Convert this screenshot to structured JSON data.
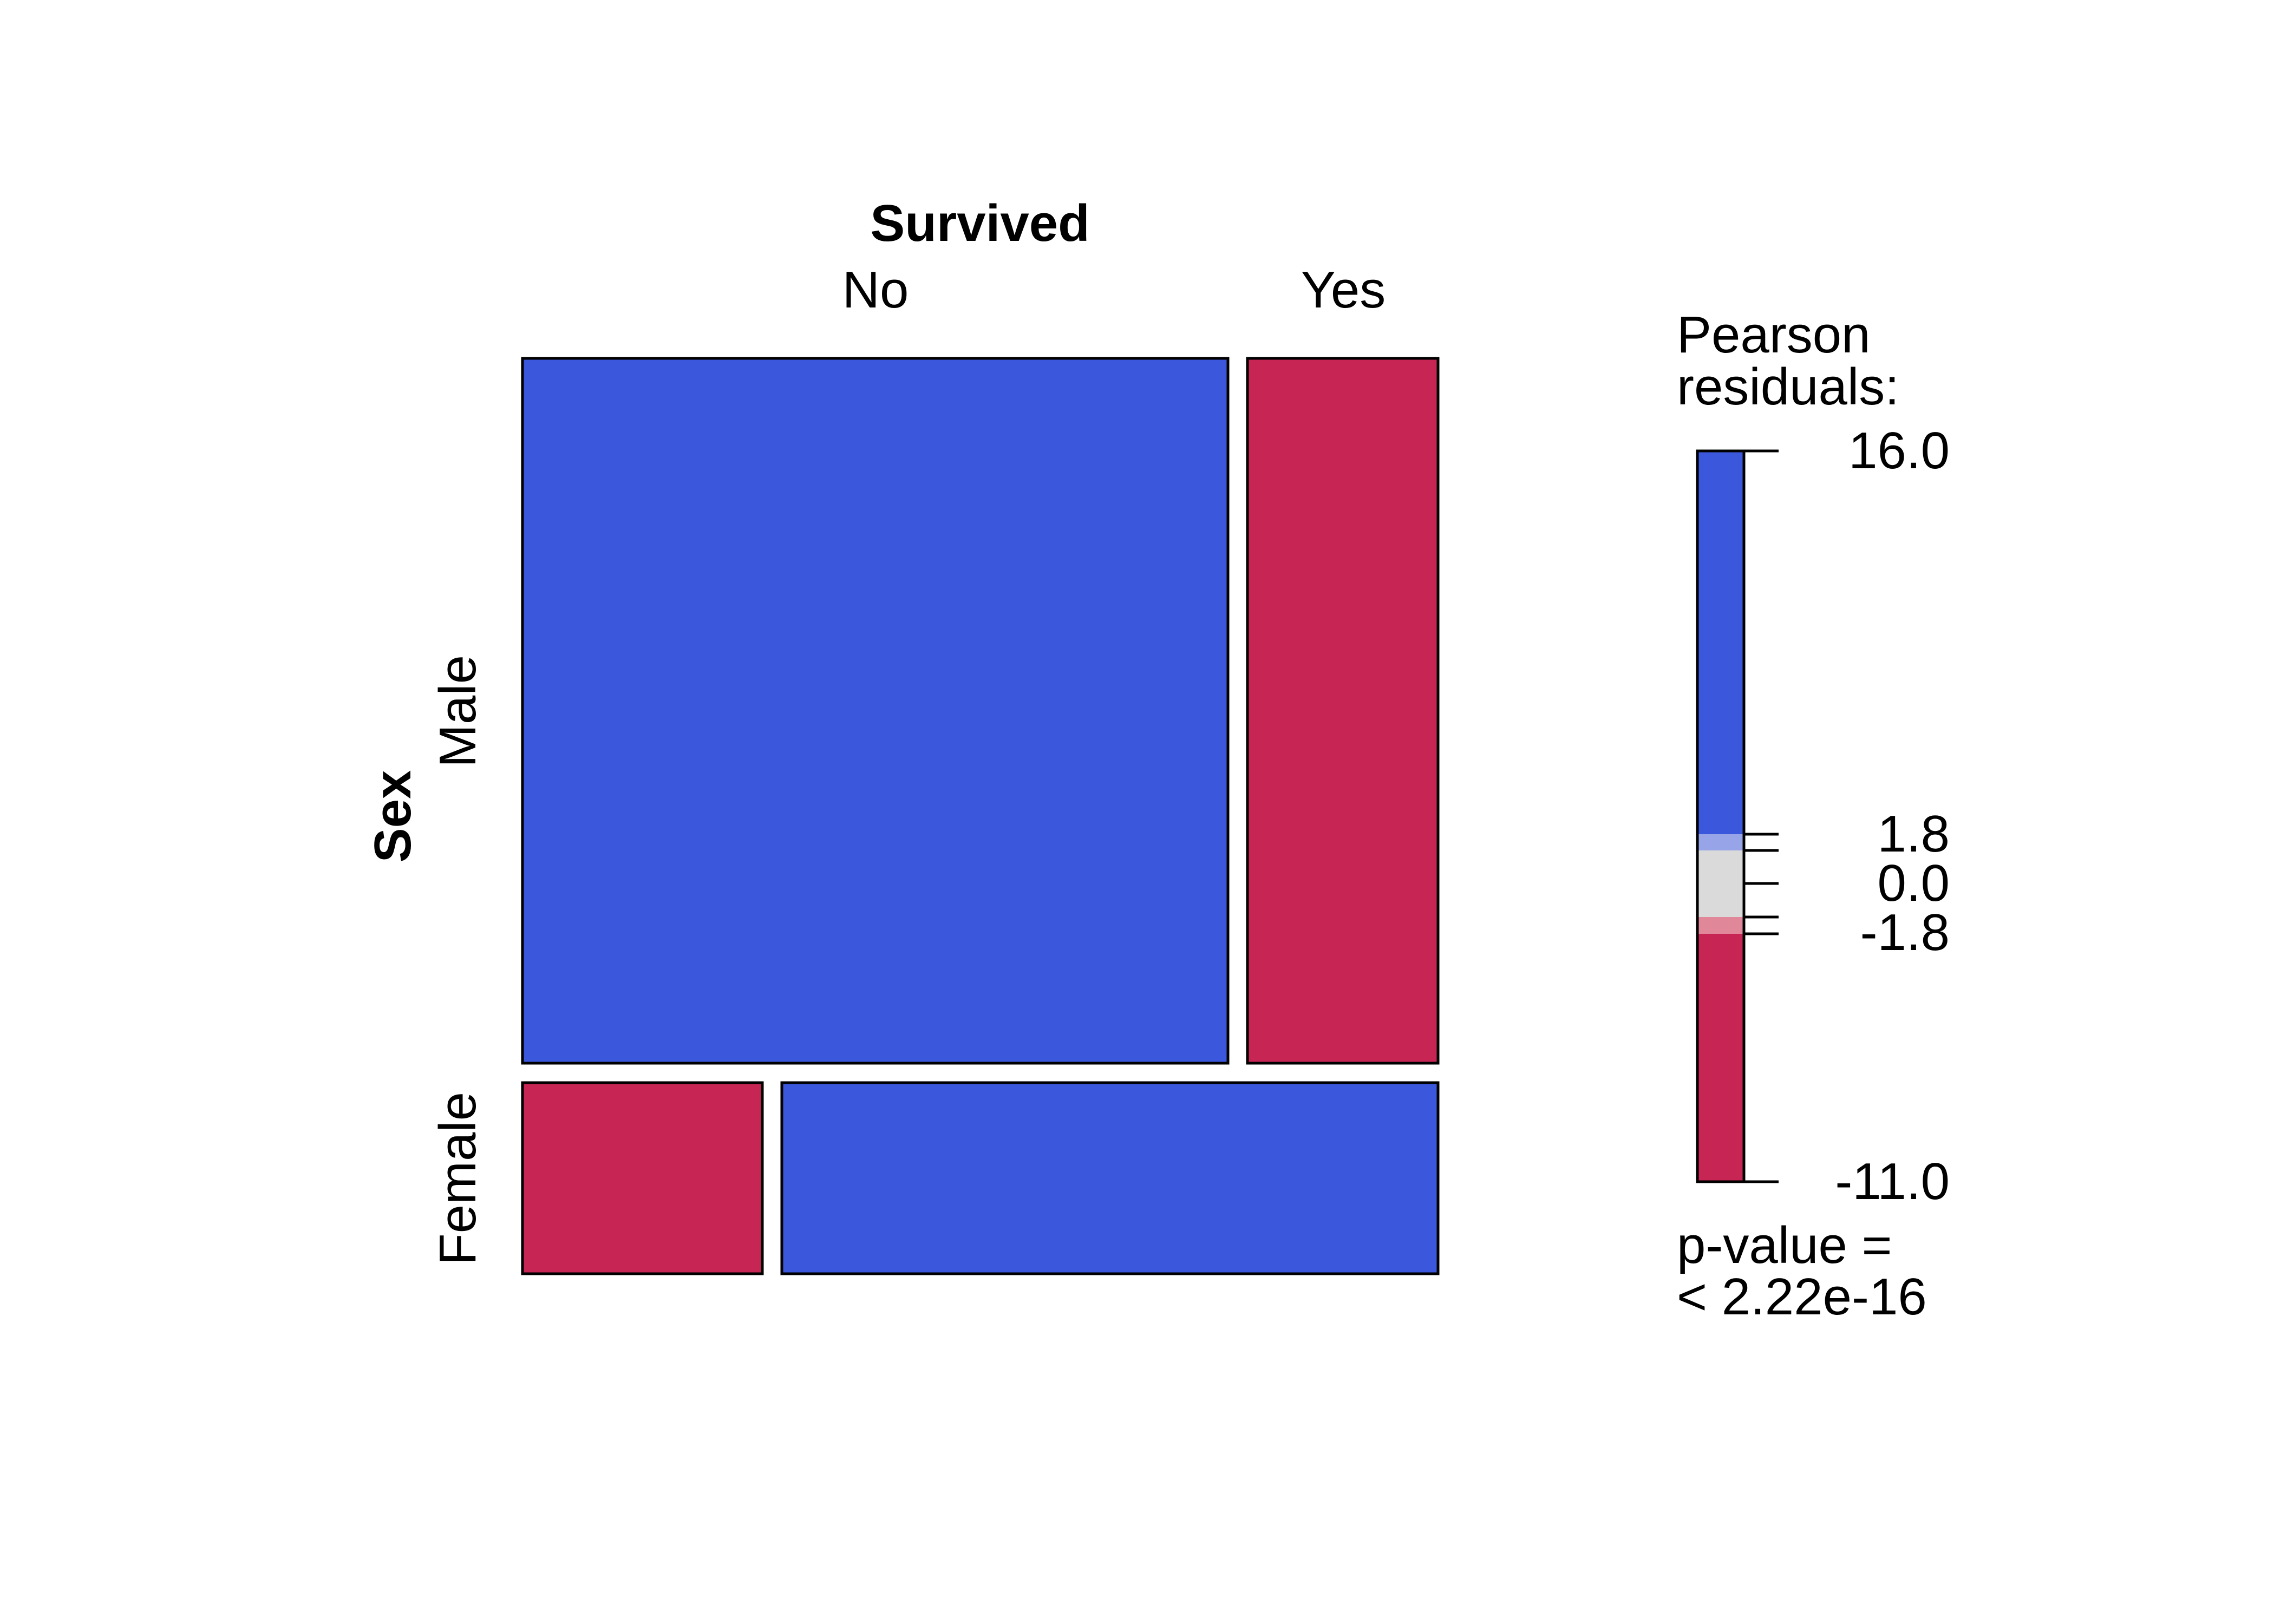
{
  "chart_data": {
    "type": "mosaic",
    "row_variable": "Sex",
    "column_variable": "Survived",
    "rows": [
      "Male",
      "Female"
    ],
    "columns": [
      "No",
      "Yes"
    ],
    "row_proportions": [
      0.786,
      0.214
    ],
    "column_proportions_within_row": [
      [
        0.788,
        0.212
      ],
      [
        0.268,
        0.732
      ]
    ],
    "residual_sign": [
      [
        "positive",
        "negative"
      ],
      [
        "negative",
        "positive"
      ]
    ],
    "legend": {
      "title_line1": "Pearson",
      "title_line2": "residuals:",
      "ticks": [
        "16.0",
        "1.8",
        "0.0",
        "-1.8",
        "-11.0"
      ],
      "range": [
        -11.0,
        16.0
      ],
      "cutoffs": [
        2,
        4
      ],
      "pvalue_line1": "p-value =",
      "pvalue_line2": "< 2.22e-16"
    },
    "colors": {
      "positive_strong": "#3b58dc",
      "positive_weak": "#97a5e8",
      "neutral": "#dadada",
      "negative_weak": "#e1879a",
      "negative_strong": "#c72655"
    }
  }
}
